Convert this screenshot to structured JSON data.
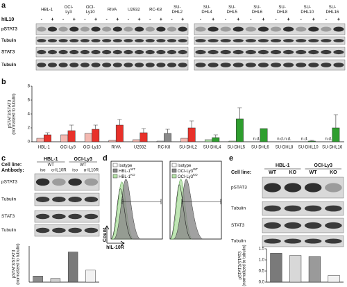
{
  "panel_labels": [
    "a",
    "b",
    "c",
    "d",
    "e"
  ],
  "blot_a": {
    "cell_lines": [
      "HBL-1",
      "OCI-Ly3",
      "OCI-Ly10",
      "RIVA",
      "U2932",
      "RC-K8",
      "SU-DHL2",
      "SU-DHL4",
      "SU-DHL5",
      "SU-DHL6",
      "SU-DHL8",
      "SU-DHL10",
      "SU-DHL16"
    ],
    "colors": [
      "#d42020",
      "#d42020",
      "#d42020",
      "#d42020",
      "#d42020",
      "#111111",
      "#d42020",
      "#2ca02c",
      "#2ca02c",
      "#2ca02c",
      "#2ca02c",
      "#2ca02c",
      "#2ca02c"
    ],
    "treatment_label": "hIL10",
    "treatment_signs": [
      "-",
      "+"
    ],
    "rows": [
      "pSTAT3",
      "Tubulin",
      "STAT3",
      "Tubulin"
    ]
  },
  "chart_data": [
    {
      "type": "bar",
      "ylabel": "pSTAT3/STAT3",
      "ylabel_sub": "(normalized to tubulin)",
      "categories": [
        "HBL-1",
        "OCI-Ly3",
        "OCI-Ly10",
        "RIVA",
        "U2932",
        "RC-K8",
        "SU-DHL2",
        "SU-DHL4",
        "SU-DHL5",
        "SU-DHL6",
        "SU-DHL8",
        "SU-DHL10",
        "SU-DHL16"
      ],
      "ylim": [
        0,
        8
      ],
      "yticks": [
        0,
        2,
        4,
        6,
        8
      ],
      "series": [
        {
          "colors": [
            "#f4b8b0",
            "#f4b8b0",
            "#f4b8b0",
            "#f4b8b0",
            "#f4b8b0",
            "#cccccc",
            "#f4b8b0",
            "#a8dba0",
            "#a8dba0",
            "#a8dba0",
            "#a8dba0",
            "#a8dba0",
            "#a8dba0"
          ],
          "values": [
            0.5,
            1.0,
            1.2,
            0.2,
            0.3,
            0.1,
            0.5,
            0.3,
            0.1,
            null,
            null,
            null,
            null
          ],
          "value_labels": [
            null,
            null,
            null,
            null,
            null,
            null,
            null,
            null,
            null,
            "n.d.",
            "n.d.",
            "n.d.",
            "n.d."
          ]
        },
        {
          "colors": [
            "#e8312a",
            "#e8312a",
            "#e8312a",
            "#e8312a",
            "#e8312a",
            "#8a8a8a",
            "#e8312a",
            "#2e9e2e",
            "#2e9e2e",
            "#2e9e2e",
            "#2e9e2e",
            "#2e9e2e",
            "#2e9e2e"
          ],
          "values": [
            1.0,
            1.6,
            1.8,
            2.4,
            1.3,
            1.2,
            2.0,
            0.6,
            3.3,
            1.9,
            null,
            0.1,
            2.0
          ],
          "errors": [
            0.3,
            0.8,
            0.6,
            0.8,
            0.6,
            0.6,
            1.0,
            0.4,
            1.6,
            null,
            null,
            0.1,
            1.9
          ],
          "value_labels": [
            null,
            null,
            null,
            null,
            null,
            null,
            null,
            null,
            null,
            null,
            "n.d.",
            null,
            null
          ]
        }
      ]
    },
    {
      "type": "bar",
      "ylabel": "pSTAT3/STAT3",
      "ylabel_sub": "(normalized to tubulin)",
      "ylim": [
        0,
        3
      ],
      "series": [
        {
          "colors": [
            "#8c8c8c",
            "#d0d0d0",
            "#7a7a7a",
            "#f2f2f2"
          ],
          "values": [
            0.5,
            0.3,
            2.5,
            1.0
          ]
        }
      ]
    },
    {
      "type": "bar",
      "ylabel": "pSTAT3/STAT3",
      "ylabel_sub": "(normalized to tubulin)",
      "ylim": [
        0,
        1.5
      ],
      "yticks": [
        {
          "value": 0,
          "label": "0.0"
        },
        0.5,
        {
          "value": 1.0,
          "label": "1.0"
        },
        1.5
      ],
      "series": [
        {
          "colors": [
            "#7a7a7a",
            "#d8d8d8",
            "#9a9a9a",
            "#f2f2f2"
          ],
          "values": [
            1.3,
            1.2,
            1.15,
            0.3
          ]
        }
      ]
    }
  ],
  "blot_c": {
    "cell_line_label": "Cell line:",
    "antibody_label": "Antibody:",
    "groups": [
      "HBL-1",
      "OCI-Ly3"
    ],
    "genotypes": [
      "WT",
      "WT"
    ],
    "antibodies": [
      "iso",
      "α-IL10R",
      "iso",
      "α-IL10R"
    ],
    "rows": [
      "pSTAT3",
      "Tubulin",
      "STAT3",
      "Tubulin"
    ]
  },
  "flow_d": {
    "ylabel": "Count",
    "xlabel": "hIL-10R",
    "plots": [
      {
        "entries": [
          {
            "name": "Isotype"
          },
          {
            "name": "HBL-1",
            "sup": "WT"
          },
          {
            "name": "HBL-1",
            "sup": "KO"
          }
        ]
      },
      {
        "entries": [
          {
            "name": "Isotype"
          },
          {
            "name": "OCI-Ly3",
            "sup": "WT"
          },
          {
            "name": "OCI-Ly3",
            "sup": "KO"
          }
        ]
      }
    ]
  },
  "blot_e": {
    "cell_line_label": "Cell line:",
    "groups": [
      "HBL-1",
      "OCI-Ly3"
    ],
    "genotypes": [
      "WT",
      "KO",
      "WT",
      "KO"
    ],
    "rows": [
      "pSTAT3",
      "Tubulin",
      "STAT3",
      "Tubulin"
    ]
  }
}
